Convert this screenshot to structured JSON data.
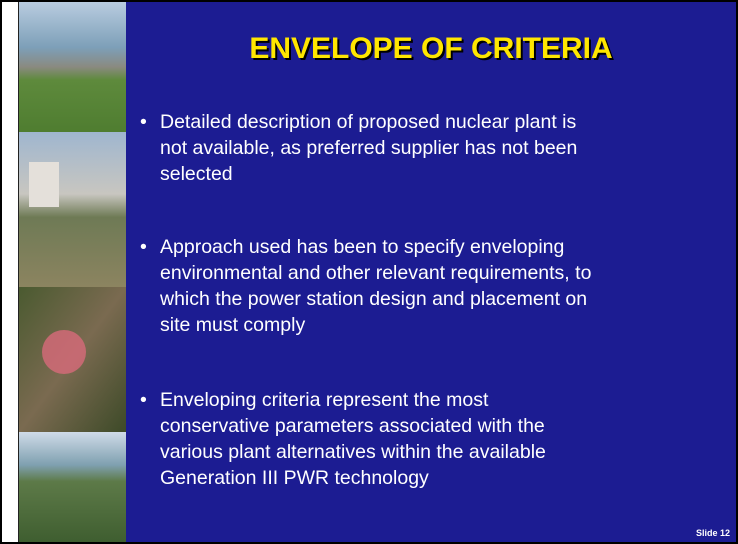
{
  "slide": {
    "title": "ENVELOPE OF CRITERIA",
    "bullets": [
      {
        "lines": [
          "Detailed description of proposed nuclear plant is",
          "not available, as preferred supplier has not been",
          "selected"
        ]
      },
      {
        "lines": [
          "Approach used has been to specify enveloping",
          "environmental and other relevant requirements, to",
          "which the power station design and placement on",
          "site must comply"
        ]
      },
      {
        "lines": [
          "Enveloping criteria represent the most",
          "conservative parameters associated with the",
          "various plant alternatives within the available",
          "Generation III PWR technology"
        ]
      }
    ],
    "footer": "Slide 12"
  }
}
